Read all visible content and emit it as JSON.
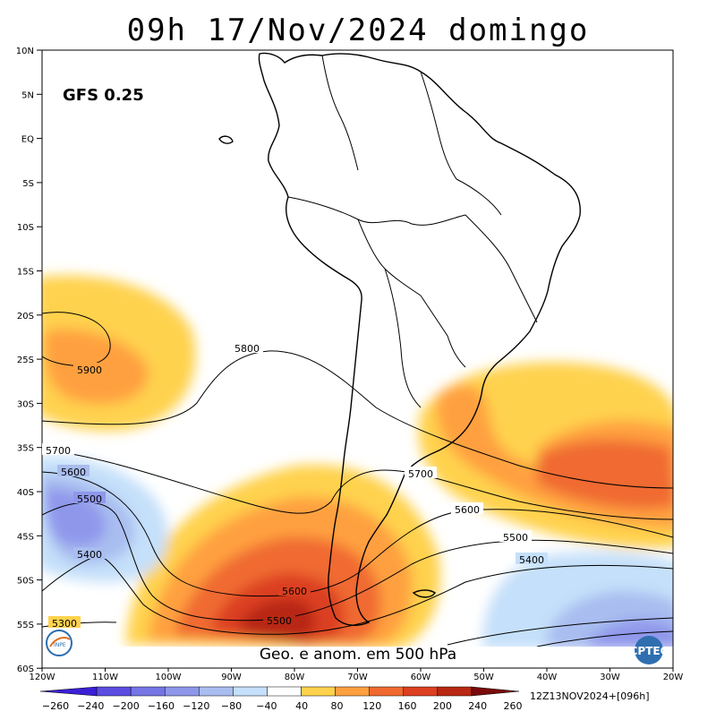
{
  "header": {
    "title": "09h 17/Nov/2024 domingo"
  },
  "model_label": "GFS 0.25",
  "footer_caption": "Geo. e anom. em 500 hPa",
  "run_info": "12Z13NOV2024+[096h]",
  "logos": {
    "left": "INPE",
    "right": "CPTEC"
  },
  "lat_labels": [
    "10N",
    "5N",
    "EQ",
    "5S",
    "10S",
    "15S",
    "20S",
    "25S",
    "30S",
    "35S",
    "40S",
    "45S",
    "50S",
    "55S",
    "60S"
  ],
  "lon_labels": [
    "120W",
    "110W",
    "100W",
    "90W",
    "80W",
    "70W",
    "60W",
    "50W",
    "40W",
    "30W",
    "20W"
  ],
  "contour_labels": [
    {
      "id": "c5900",
      "text": "5900"
    },
    {
      "id": "c5800",
      "text": "5800"
    },
    {
      "id": "c5700w",
      "text": "5700"
    },
    {
      "id": "c5700e",
      "text": "5700"
    },
    {
      "id": "c5600w",
      "text": "5600"
    },
    {
      "id": "c5600e",
      "text": "5600"
    },
    {
      "id": "c5600s",
      "text": "5600"
    },
    {
      "id": "c5500w",
      "text": "5500"
    },
    {
      "id": "c5500e",
      "text": "5500"
    },
    {
      "id": "c5500s",
      "text": "5500"
    },
    {
      "id": "c5400w",
      "text": "5400"
    },
    {
      "id": "c5400e",
      "text": "5400"
    },
    {
      "id": "c5300w",
      "text": "5300"
    }
  ],
  "colorbar": {
    "labels": [
      "−260",
      "−240",
      "−200",
      "−160",
      "−120",
      "−80",
      "−40",
      "40",
      "80",
      "120",
      "160",
      "200",
      "240",
      "260"
    ],
    "colors": [
      "#3b1fd6",
      "#5b4de0",
      "#7575e6",
      "#8f97eb",
      "#a9bdf0",
      "#c5e0fa",
      "#ffffff",
      "#ffd24d",
      "#ffa040",
      "#f06a30",
      "#dc4020",
      "#b82812",
      "#7a0a0a"
    ]
  },
  "anomaly_colors": {
    "pos1": "#ffd24d",
    "pos2": "#ffa040",
    "pos3": "#f06a30",
    "pos4": "#dc4020",
    "pos5": "#b82812",
    "neg1": "#c5e0fa",
    "neg2": "#a9bdf0",
    "neg3": "#8f97eb"
  }
}
